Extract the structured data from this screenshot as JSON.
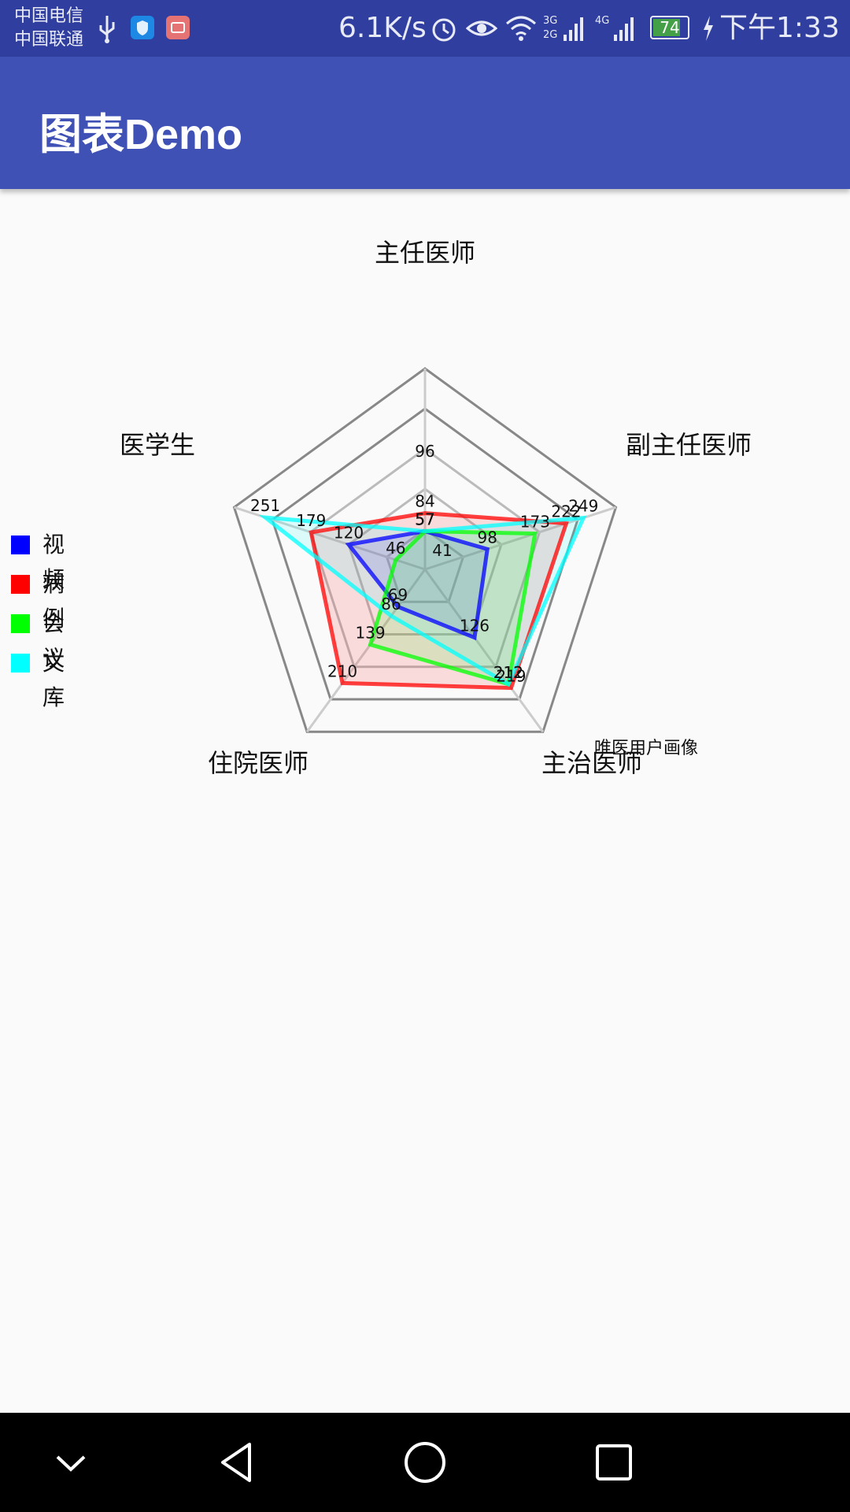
{
  "status_bar": {
    "carrier_1": "中国电信",
    "carrier_2": "中国联通",
    "network_speed": "6.1K/s",
    "battery_level": "74",
    "time": "下午1:33",
    "icons": [
      "usb-icon",
      "shield-app-icon",
      "message-app-icon",
      "alarm-icon",
      "eye-icon",
      "wifi-icon",
      "signal-3g-icon",
      "signal-4g-icon",
      "battery-icon",
      "charging-icon"
    ]
  },
  "app_bar": {
    "title": "图表Demo"
  },
  "chart_data": {
    "type": "radar",
    "description_label": "唯医用户画像",
    "axes": [
      "主任医师",
      "副主任医师",
      "主治医师",
      "住院医师",
      "医学生"
    ],
    "max_value": 300,
    "rings": 5,
    "series": [
      {
        "name": "视频",
        "color": "#0000ff",
        "values": [
          57,
          98,
          126,
          69,
          120
        ]
      },
      {
        "name": "病例",
        "color": "#ff0000",
        "values": [
          84,
          222,
          219,
          210,
          179
        ]
      },
      {
        "name": "会议",
        "color": "#00ff00",
        "values": [
          57,
          173,
          212,
          139,
          46
        ]
      },
      {
        "name": "文库",
        "color": "#00ffff",
        "values": [
          57,
          249,
          212,
          86,
          251
        ]
      }
    ],
    "extra_labels": [
      "96",
      "41"
    ]
  },
  "nav_bar": {
    "icons": [
      "collapse-icon",
      "back-icon",
      "home-icon",
      "recents-icon"
    ]
  }
}
